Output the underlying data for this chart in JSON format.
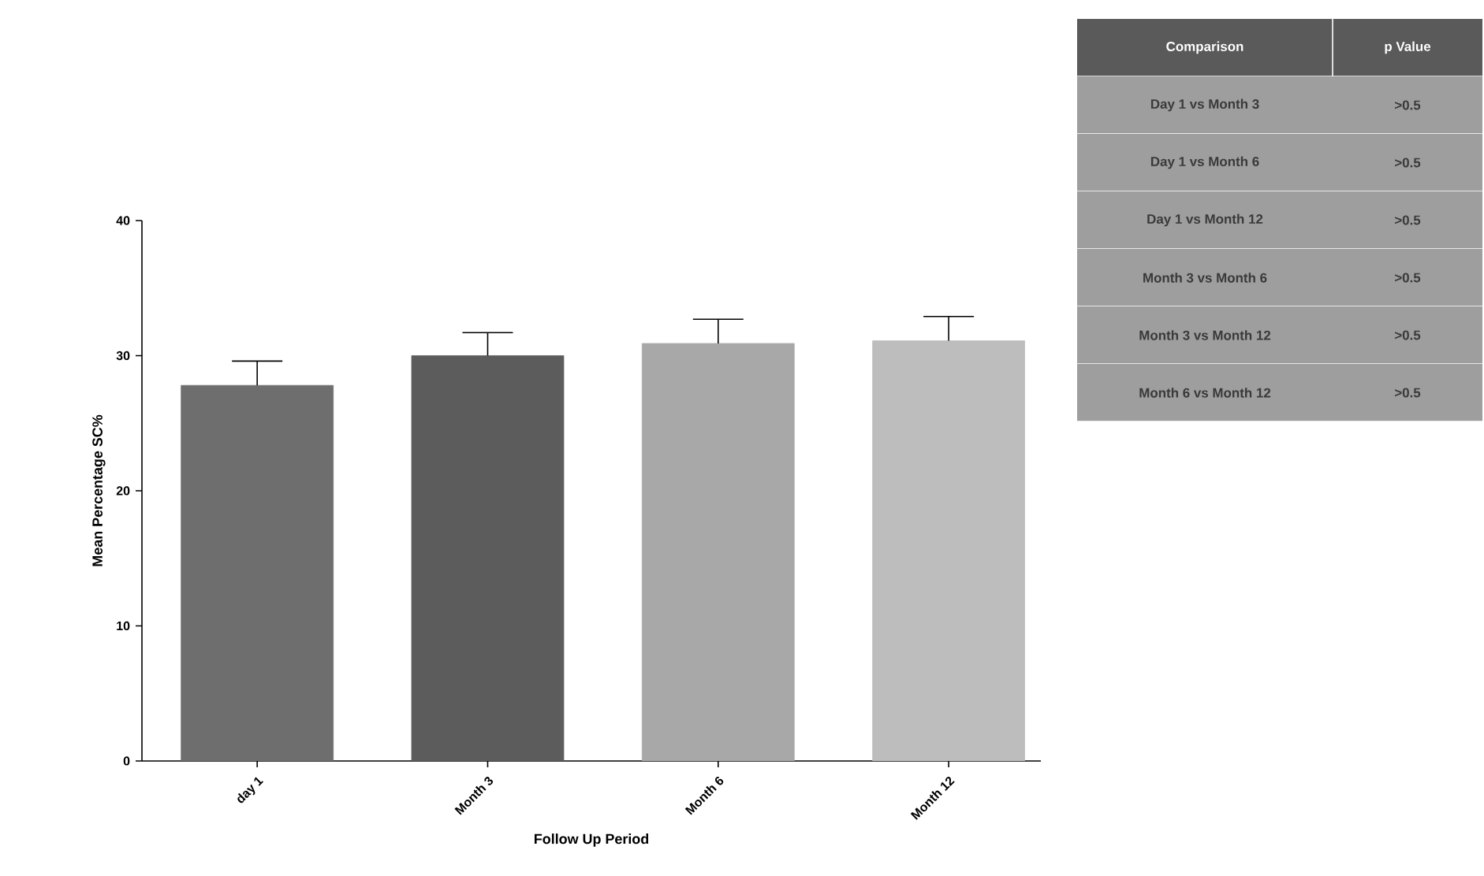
{
  "chart_data": {
    "type": "bar",
    "xlabel": "Follow Up Period",
    "ylabel": "Mean Percentage SC%",
    "categories": [
      "day 1",
      "Month 3",
      "Month 6",
      "Month 12"
    ],
    "values": [
      27.8,
      30.0,
      30.9,
      31.1
    ],
    "errors": [
      1.8,
      1.7,
      1.8,
      1.8
    ],
    "colors": [
      "#6e6e6e",
      "#5c5c5c",
      "#a8a8a8",
      "#bdbdbd"
    ],
    "ylim": [
      0,
      40
    ],
    "yticks": [
      0,
      10,
      20,
      30,
      40
    ],
    "grid": false,
    "annotations": [
      "Comparison",
      "p Value",
      "Day 1 vs Month 3",
      ">0.5",
      "Day 1 vs Month 6",
      ">0.5",
      "Day 1 vs Month 12",
      ">0.5",
      "Month 3 vs Month 6",
      ">0.5",
      "Month 3 vs Month 12",
      ">0.5",
      "Month 6 vs Month 12",
      ">0.5"
    ]
  }
}
